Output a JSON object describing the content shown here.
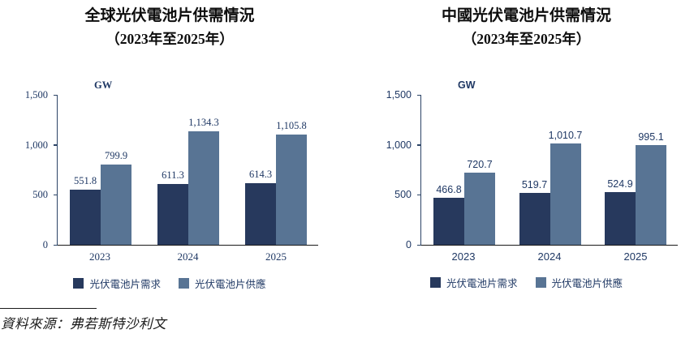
{
  "footer": {
    "source": "資料來源：弗若斯特沙利文"
  },
  "chart_data": [
    {
      "type": "bar",
      "title": "全球光伏電池片供需情況",
      "subtitle": "（2023年至2025年）",
      "unit": "GW",
      "categories": [
        "2023",
        "2024",
        "2025"
      ],
      "series": [
        {
          "name": "光伏電池片需求",
          "color": "#27395d",
          "values": [
            551.8,
            611.3,
            614.3
          ],
          "labels": [
            "551.8",
            "611.3",
            "614.3"
          ]
        },
        {
          "name": "光伏電池片供應",
          "color": "#587494",
          "values": [
            799.9,
            1134.3,
            1105.8
          ],
          "labels": [
            "799.9",
            "1,134.3",
            "1,105.8"
          ]
        }
      ],
      "ylim": [
        0,
        1500
      ],
      "yticks": [
        {
          "v": 1500,
          "label": "1,500"
        },
        {
          "v": 1000,
          "label": "1,000"
        },
        {
          "v": 500,
          "label": "500"
        },
        {
          "v": 0,
          "label": "0"
        }
      ],
      "legend_position": "bottom",
      "grid": false
    },
    {
      "type": "bar",
      "title": "中國光伏電池片供需情況",
      "subtitle": "（2023年至2025年）",
      "unit": "GW",
      "categories": [
        "2023",
        "2024",
        "2025"
      ],
      "series": [
        {
          "name": "光伏電池片需求",
          "color": "#27395d",
          "values": [
            466.8,
            519.7,
            524.9
          ],
          "labels": [
            "466.8",
            "519.7",
            "524.9"
          ]
        },
        {
          "name": "光伏電池片供應",
          "color": "#587494",
          "values": [
            720.7,
            1010.7,
            995.1
          ],
          "labels": [
            "720.7",
            "1,010.7",
            "995.1"
          ]
        }
      ],
      "ylim": [
        0,
        1500
      ],
      "yticks": [
        {
          "v": 1500,
          "label": "1,500"
        },
        {
          "v": 1000,
          "label": "1,000"
        },
        {
          "v": 500,
          "label": "500"
        },
        {
          "v": 0,
          "label": "0"
        }
      ],
      "legend_position": "bottom",
      "grid": false
    }
  ]
}
